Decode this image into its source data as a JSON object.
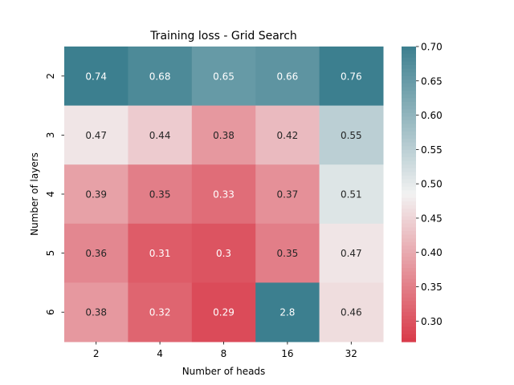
{
  "chart_data": {
    "type": "heatmap",
    "title": "Training loss - Grid Search",
    "xlabel": "Number of heads",
    "ylabel": "Number of layers",
    "x_categories": [
      "2",
      "4",
      "8",
      "16",
      "32"
    ],
    "y_categories": [
      "2",
      "3",
      "4",
      "5",
      "6"
    ],
    "values": [
      [
        0.74,
        0.68,
        0.65,
        0.66,
        0.76
      ],
      [
        0.47,
        0.44,
        0.38,
        0.42,
        0.55
      ],
      [
        0.39,
        0.35,
        0.33,
        0.37,
        0.51
      ],
      [
        0.36,
        0.31,
        0.3,
        0.35,
        0.47
      ],
      [
        0.38,
        0.32,
        0.29,
        2.8,
        0.46
      ]
    ],
    "cell_labels": [
      [
        "0.74",
        "0.68",
        "0.65",
        "0.66",
        "0.76"
      ],
      [
        "0.47",
        "0.44",
        "0.38",
        "0.42",
        "0.55"
      ],
      [
        "0.39",
        "0.35",
        "0.33",
        "0.37",
        "0.51"
      ],
      [
        "0.36",
        "0.31",
        "0.3",
        "0.35",
        "0.47"
      ],
      [
        "0.38",
        "0.32",
        "0.29",
        "2.8",
        "0.46"
      ]
    ],
    "colorbar": {
      "range": [
        0.27,
        0.7
      ],
      "ticks": [
        "0.30",
        "0.35",
        "0.40",
        "0.45",
        "0.50",
        "0.55",
        "0.60",
        "0.65",
        "0.70"
      ],
      "low_color": "#d93a49",
      "mid_color": "#f2f2f2",
      "high_color": "#3c7f8f"
    },
    "grid": false,
    "legend": "colorbar-right"
  }
}
